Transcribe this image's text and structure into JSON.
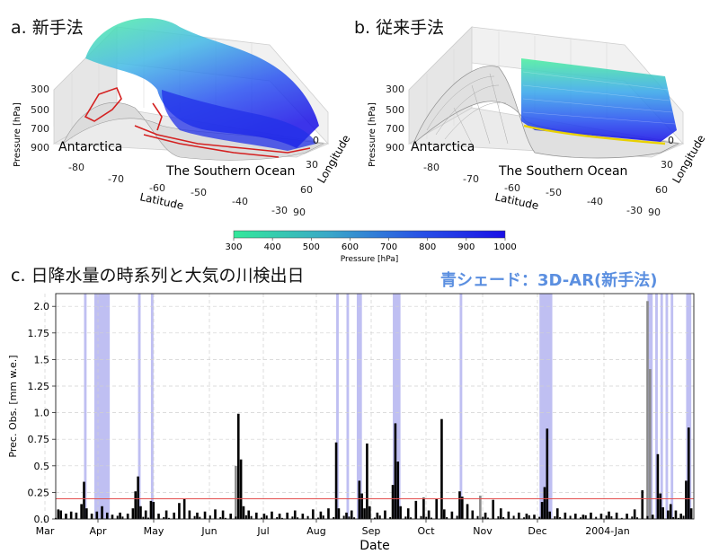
{
  "panel_a": {
    "title": "a. 新手法",
    "antarctica": "Antarctica",
    "ocean": "The Southern Ocean",
    "pressure_label": "Pressure [hPa]",
    "latitude_label": "Latitude",
    "longitude_label": "Longitude",
    "pressure_ticks": [
      "300",
      "500",
      "700",
      "900"
    ],
    "latitude_ticks": [
      "-80",
      "-70",
      "-60",
      "-50",
      "-40",
      "-30"
    ],
    "longitude_ticks": [
      "0",
      "30",
      "60",
      "90"
    ]
  },
  "panel_b": {
    "title": "b. 従来手法",
    "antarctica": "Antarctica",
    "ocean": "The Southern Ocean",
    "pressure_label": "Pressure [hPa]",
    "latitude_label": "Latitude",
    "longitude_label": "Longitude",
    "pressure_ticks": [
      "300",
      "500",
      "700",
      "900"
    ],
    "latitude_ticks": [
      "-80",
      "-70",
      "-60",
      "-50",
      "-40",
      "-30"
    ],
    "longitude_ticks": [
      "0",
      "30",
      "60",
      "90"
    ]
  },
  "colorbar": {
    "label": "Pressure [hPa]",
    "ticks": [
      "300",
      "400",
      "500",
      "600",
      "700",
      "800",
      "900",
      "1000"
    ],
    "color_low": "#33e89a",
    "color_high": "#1a10e6"
  },
  "panel_c": {
    "title": "c. 日降水量の時系列と大気の川検出日",
    "legend_note": "青シェード：3D-AR(新手法)"
  },
  "chart_data": {
    "type": "bar",
    "title": "c. 日降水量の時系列と大気の川検出日",
    "xlabel": "Date",
    "ylabel": "Prec. Obs. [mm w.e.]",
    "ylim": [
      0,
      2.12
    ],
    "yticks": [
      "0.0",
      "0.25",
      "0.5",
      "0.75",
      "1.0",
      "1.25",
      "1.5",
      "1.75",
      "2.0"
    ],
    "xticks": [
      "Mar",
      "Apr",
      "May",
      "Jun",
      "Jul",
      "Aug",
      "Sep",
      "Oct",
      "Nov",
      "Dec",
      "2004-Jan"
    ],
    "grid": true,
    "threshold": 0.19,
    "threshold_color": "#e35050",
    "shade_color": "#b4b4f0",
    "bar_color": "#000000",
    "gray_bar_color": "#8a8a8a",
    "shaded_periods": [
      [
        11,
        12
      ],
      [
        15,
        21
      ],
      [
        32,
        33
      ],
      [
        37,
        38
      ],
      [
        109,
        110
      ],
      [
        113,
        114
      ],
      [
        117,
        119
      ],
      [
        131,
        134
      ],
      [
        157,
        158
      ],
      [
        188,
        193
      ],
      [
        230,
        232
      ],
      [
        233,
        234
      ],
      [
        235,
        236
      ],
      [
        237,
        238
      ],
      [
        239,
        240
      ],
      [
        245,
        247
      ]
    ],
    "bars": [
      {
        "day": 1,
        "value": 0.09
      },
      {
        "day": 2,
        "value": 0.08
      },
      {
        "day": 4,
        "value": 0.05
      },
      {
        "day": 6,
        "value": 0.07
      },
      {
        "day": 8,
        "value": 0.06
      },
      {
        "day": 10,
        "value": 0.14
      },
      {
        "day": 11,
        "value": 0.35
      },
      {
        "day": 12,
        "value": 0.1
      },
      {
        "day": 14,
        "value": 0.05
      },
      {
        "day": 16,
        "value": 0.07
      },
      {
        "day": 18,
        "value": 0.12
      },
      {
        "day": 20,
        "value": 0.06
      },
      {
        "day": 22,
        "value": 0.04
      },
      {
        "day": 25,
        "value": 0.06
      },
      {
        "day": 28,
        "value": 0.05
      },
      {
        "day": 30,
        "value": 0.1
      },
      {
        "day": 31,
        "value": 0.26
      },
      {
        "day": 32,
        "value": 0.4
      },
      {
        "day": 33,
        "value": 0.12
      },
      {
        "day": 35,
        "value": 0.08
      },
      {
        "day": 37,
        "value": 0.17
      },
      {
        "day": 38,
        "value": 0.16
      },
      {
        "day": 40,
        "value": 0.05
      },
      {
        "day": 43,
        "value": 0.08
      },
      {
        "day": 46,
        "value": 0.06
      },
      {
        "day": 48,
        "value": 0.15
      },
      {
        "day": 50,
        "value": 0.19
      },
      {
        "day": 52,
        "value": 0.08
      },
      {
        "day": 55,
        "value": 0.06
      },
      {
        "day": 58,
        "value": 0.07
      },
      {
        "day": 62,
        "value": 0.09
      },
      {
        "day": 65,
        "value": 0.08
      },
      {
        "day": 68,
        "value": 0.05
      },
      {
        "day": 70,
        "value": 0.5,
        "gray": true
      },
      {
        "day": 71,
        "value": 0.99
      },
      {
        "day": 72,
        "value": 0.56
      },
      {
        "day": 73,
        "value": 0.12
      },
      {
        "day": 75,
        "value": 0.08
      },
      {
        "day": 78,
        "value": 0.06
      },
      {
        "day": 81,
        "value": 0.05
      },
      {
        "day": 84,
        "value": 0.07
      },
      {
        "day": 87,
        "value": 0.05
      },
      {
        "day": 90,
        "value": 0.06
      },
      {
        "day": 93,
        "value": 0.08
      },
      {
        "day": 96,
        "value": 0.05
      },
      {
        "day": 100,
        "value": 0.09
      },
      {
        "day": 103,
        "value": 0.07
      },
      {
        "day": 106,
        "value": 0.1
      },
      {
        "day": 109,
        "value": 0.72
      },
      {
        "day": 110,
        "value": 0.1
      },
      {
        "day": 113,
        "value": 0.06
      },
      {
        "day": 115,
        "value": 0.08
      },
      {
        "day": 118,
        "value": 0.36
      },
      {
        "day": 119,
        "value": 0.24
      },
      {
        "day": 120,
        "value": 0.1
      },
      {
        "day": 121,
        "value": 0.71
      },
      {
        "day": 122,
        "value": 0.12
      },
      {
        "day": 125,
        "value": 0.06
      },
      {
        "day": 128,
        "value": 0.08
      },
      {
        "day": 131,
        "value": 0.32
      },
      {
        "day": 132,
        "value": 0.9
      },
      {
        "day": 133,
        "value": 0.54
      },
      {
        "day": 134,
        "value": 0.12
      },
      {
        "day": 137,
        "value": 0.1
      },
      {
        "day": 140,
        "value": 0.17
      },
      {
        "day": 143,
        "value": 0.2
      },
      {
        "day": 145,
        "value": 0.08
      },
      {
        "day": 148,
        "value": 0.19
      },
      {
        "day": 150,
        "value": 0.94
      },
      {
        "day": 151,
        "value": 0.09
      },
      {
        "day": 154,
        "value": 0.07
      },
      {
        "day": 157,
        "value": 0.26
      },
      {
        "day": 158,
        "value": 0.21
      },
      {
        "day": 160,
        "value": 0.14
      },
      {
        "day": 162,
        "value": 0.08
      },
      {
        "day": 165,
        "value": 0.22,
        "gray": true
      },
      {
        "day": 167,
        "value": 0.06
      },
      {
        "day": 170,
        "value": 0.18
      },
      {
        "day": 173,
        "value": 0.1
      },
      {
        "day": 176,
        "value": 0.07
      },
      {
        "day": 180,
        "value": 0.06
      },
      {
        "day": 183,
        "value": 0.05
      },
      {
        "day": 186,
        "value": 0.04
      },
      {
        "day": 189,
        "value": 0.16
      },
      {
        "day": 190,
        "value": 0.3
      },
      {
        "day": 191,
        "value": 0.85
      },
      {
        "day": 192,
        "value": 0.07
      },
      {
        "day": 195,
        "value": 0.1
      },
      {
        "day": 198,
        "value": 0.06
      },
      {
        "day": 202,
        "value": 0.05
      },
      {
        "day": 205,
        "value": 0.04
      },
      {
        "day": 208,
        "value": 0.06
      },
      {
        "day": 212,
        "value": 0.05
      },
      {
        "day": 215,
        "value": 0.07
      },
      {
        "day": 218,
        "value": 0.06
      },
      {
        "day": 222,
        "value": 0.05
      },
      {
        "day": 225,
        "value": 0.09
      },
      {
        "day": 228,
        "value": 0.27
      },
      {
        "day": 230,
        "value": 2.05,
        "gray": true
      },
      {
        "day": 231,
        "value": 1.41,
        "gray": true
      },
      {
        "day": 232,
        "value": 0.04
      },
      {
        "day": 234,
        "value": 0.61
      },
      {
        "day": 235,
        "value": 0.24
      },
      {
        "day": 236,
        "value": 0.11
      },
      {
        "day": 238,
        "value": 0.08
      },
      {
        "day": 239,
        "value": 0.14
      },
      {
        "day": 241,
        "value": 0.08
      },
      {
        "day": 243,
        "value": 0.05
      },
      {
        "day": 245,
        "value": 0.36
      },
      {
        "day": 246,
        "value": 0.86
      },
      {
        "day": 247,
        "value": 0.1
      }
    ]
  }
}
